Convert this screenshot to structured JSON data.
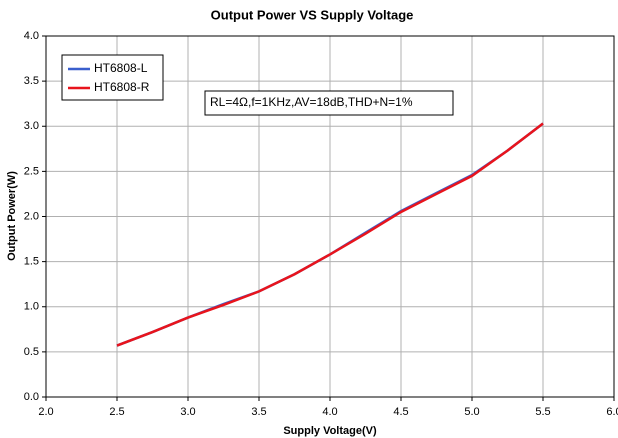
{
  "chart_data": {
    "type": "line",
    "title": "Output Power VS Supply Voltage",
    "x_label": "Supply Voltage(V)",
    "y_label": "Output Power(W)",
    "annotation": "RL=4Ω,f=1KHz,AV=18dB,THD+N=1%",
    "x": [
      2.5,
      2.75,
      3.0,
      3.25,
      3.5,
      3.75,
      4.0,
      4.25,
      4.5,
      4.75,
      5.0,
      5.25,
      5.5
    ],
    "series": [
      {
        "name": "HT6808-L",
        "color": "#3a5fcd",
        "values": [
          0.57,
          0.72,
          0.88,
          1.03,
          1.17,
          1.36,
          1.58,
          1.82,
          2.06,
          2.26,
          2.46,
          2.73,
          3.03
        ]
      },
      {
        "name": "HT6808-R",
        "color": "#e8141c",
        "values": [
          0.57,
          0.72,
          0.88,
          1.02,
          1.17,
          1.36,
          1.58,
          1.81,
          2.05,
          2.25,
          2.45,
          2.73,
          3.03
        ]
      }
    ],
    "xlim": [
      2,
      6
    ],
    "xticks": [
      {
        "value": 2,
        "label": "2.0"
      },
      {
        "value": 2.5,
        "label": "2.5"
      },
      {
        "value": 3,
        "label": "3.0"
      },
      {
        "value": 3.5,
        "label": "3.5"
      },
      {
        "value": 4,
        "label": "4.0"
      },
      {
        "value": 4.5,
        "label": "4.5"
      },
      {
        "value": 5,
        "label": "5.0"
      },
      {
        "value": 5.5,
        "label": "5.5"
      },
      {
        "value": 6,
        "label": "6.0"
      }
    ],
    "ylim": [
      0,
      4
    ],
    "yticks": [
      {
        "value": 0,
        "label": "0.0"
      },
      {
        "value": 0.5,
        "label": "0.5"
      },
      {
        "value": 1,
        "label": "1.0"
      },
      {
        "value": 1.5,
        "label": "1.5"
      },
      {
        "value": 2,
        "label": "2.0"
      },
      {
        "value": 2.5,
        "label": "2.5"
      },
      {
        "value": 3,
        "label": "3.0"
      },
      {
        "value": 3.5,
        "label": "3.5"
      },
      {
        "value": 4,
        "label": "4.0"
      }
    ],
    "grid": true
  }
}
